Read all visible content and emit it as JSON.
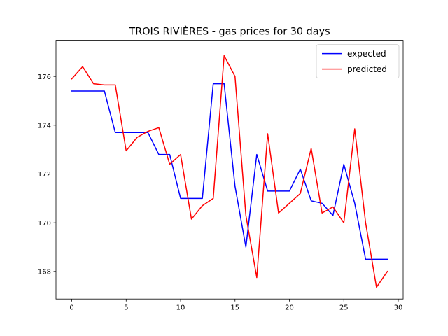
{
  "chart_data": {
    "type": "line",
    "title": "TROIS RIVIÈRES - gas prices for 30 days",
    "xlabel": "",
    "ylabel": "",
    "x": [
      0,
      1,
      2,
      3,
      4,
      5,
      6,
      7,
      8,
      9,
      10,
      11,
      12,
      13,
      14,
      15,
      16,
      17,
      18,
      19,
      20,
      21,
      22,
      23,
      24,
      25,
      26,
      27,
      28,
      29
    ],
    "xlim": [
      -1.45,
      30.45
    ],
    "ylim": [
      166.87,
      177.48
    ],
    "xticks": [
      0,
      5,
      10,
      15,
      20,
      25,
      30
    ],
    "yticks": [
      168,
      170,
      172,
      174,
      176
    ],
    "grid": false,
    "legend_position": "top-right",
    "series": [
      {
        "name": "expected",
        "color": "#0000ff",
        "values": [
          175.4,
          175.4,
          175.4,
          175.4,
          173.7,
          173.7,
          173.7,
          173.7,
          172.8,
          172.8,
          171.0,
          171.0,
          171.0,
          175.7,
          175.7,
          171.5,
          169.0,
          172.8,
          171.3,
          171.3,
          171.3,
          172.2,
          170.9,
          170.8,
          170.3,
          172.4,
          170.8,
          168.5,
          168.5,
          168.5
        ]
      },
      {
        "name": "predicted",
        "color": "#ff0000",
        "values": [
          175.9,
          176.4,
          175.7,
          175.65,
          175.65,
          172.95,
          173.5,
          173.75,
          173.9,
          172.4,
          172.8,
          170.15,
          170.7,
          171.0,
          176.85,
          176.0,
          170.3,
          167.75,
          173.65,
          170.4,
          170.8,
          171.2,
          173.05,
          170.4,
          170.65,
          170.0,
          173.85,
          170.0,
          167.35,
          168.0
        ]
      }
    ]
  }
}
